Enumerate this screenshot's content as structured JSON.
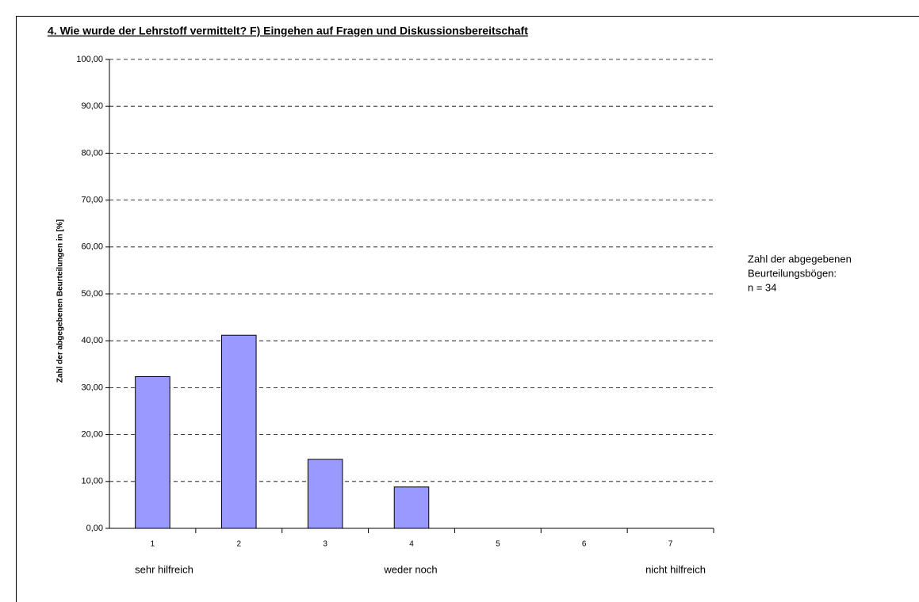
{
  "chart_data": {
    "type": "bar",
    "title": "4. Wie wurde der Lehrstoff vermittelt?   F) Eingehen auf Fragen und Diskussionsbereitschaft",
    "y_label": "Zahl der abgegebenen Beurteilungen in [%]",
    "categories": [
      "1",
      "2",
      "3",
      "4",
      "5",
      "6",
      "7"
    ],
    "values": [
      32.35,
      41.18,
      14.71,
      8.82,
      0,
      0,
      0
    ],
    "color": "#9999ff",
    "ylim": [
      0,
      100
    ],
    "yticks": [
      {
        "value": 0,
        "label": "0,00"
      },
      {
        "value": 10,
        "label": "10,00"
      },
      {
        "value": 20,
        "label": "20,00"
      },
      {
        "value": 30,
        "label": "30,00"
      },
      {
        "value": 40,
        "label": "40,00"
      },
      {
        "value": 50,
        "label": "50,00"
      },
      {
        "value": 60,
        "label": "60,00"
      },
      {
        "value": 70,
        "label": "70,00"
      },
      {
        "value": 80,
        "label": "80,00"
      },
      {
        "value": 90,
        "label": "90,00"
      },
      {
        "value": 100,
        "label": "100,00"
      }
    ],
    "grid": true,
    "scale_labels": [
      "sehr hilfreich",
      "weder noch",
      "nicht hilfreich"
    ],
    "annotation": [
      "Zahl der abgegebenen",
      "Beurteilungsbögen:",
      "n = 34"
    ]
  }
}
